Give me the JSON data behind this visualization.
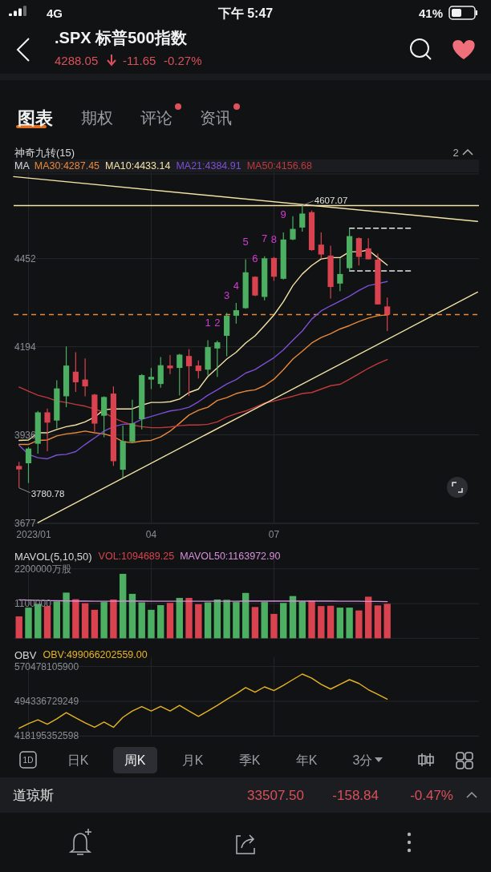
{
  "chart_data": [
    {
      "type": "other",
      "title": ".SPX 标普500指数",
      "subtitle": "4288.05",
      "annotations": [
        "4G",
        "下午 5:47",
        "41%",
        "-11.65",
        "-0.27%",
        "图表",
        "期权",
        "评论",
        "资讯"
      ]
    },
    {
      "type": "candlestick",
      "title": "神奇九转(15)",
      "legend_title": "MA",
      "legend": "top left",
      "grid": true,
      "x": [
        "2022-12-26",
        "2023-01-02",
        "2023-01-09",
        "2023-01-16",
        "2023-01-23",
        "2023-01-30",
        "2023-02-06",
        "2023-02-13",
        "2023-02-20",
        "2023-02-27",
        "2023-03-06",
        "2023-03-13",
        "2023-03-20",
        "2023-03-27",
        "2023-04-03",
        "2023-04-10",
        "2023-04-17",
        "2023-04-24",
        "2023-05-01",
        "2023-05-08",
        "2023-05-15",
        "2023-05-22",
        "2023-05-29",
        "2023-06-05",
        "2023-06-12",
        "2023-06-19",
        "2023-06-26",
        "2023-07-03",
        "2023-07-10",
        "2023-07-17",
        "2023-07-24",
        "2023-07-31",
        "2023-08-07",
        "2023-08-14",
        "2023-08-21",
        "2023-08-28",
        "2023-09-04",
        "2023-09-11",
        "2023-09-18",
        "2023-09-25"
      ],
      "ohlc": [
        [
          3845,
          3857,
          3780.78,
          3835
        ],
        [
          3853,
          3900,
          3795,
          3896
        ],
        [
          3910,
          4006,
          3881,
          4002
        ],
        [
          4002,
          4013,
          3888,
          3972
        ],
        [
          3978,
          4096,
          3955,
          4072
        ],
        [
          4049,
          4195,
          4017,
          4139
        ],
        [
          4121,
          4178,
          4062,
          4090
        ],
        [
          4098,
          4160,
          4049,
          4078
        ],
        [
          4054,
          4056,
          3943,
          3969
        ],
        [
          3992,
          4049,
          3929,
          4047
        ],
        [
          4057,
          4078,
          3845,
          3859
        ],
        [
          3834,
          3963,
          3810,
          3918
        ],
        [
          3916,
          4039,
          3913,
          3970
        ],
        [
          3982,
          4114,
          3952,
          4111
        ],
        [
          4098,
          4132,
          4070,
          4106
        ],
        [
          4085,
          4164,
          4074,
          4140
        ],
        [
          4139,
          4170,
          4114,
          4131
        ],
        [
          4132,
          4173,
          4052,
          4171
        ],
        [
          4167,
          4187,
          4050,
          4137
        ],
        [
          4139,
          4154,
          4101,
          4123
        ],
        [
          4127,
          4213,
          4111,
          4193
        ],
        [
          4189,
          4212,
          4106,
          4207
        ],
        [
          4226,
          4293,
          4166,
          4285
        ],
        [
          4285,
          4322,
          4262,
          4301
        ],
        [
          4307,
          4450,
          4305,
          4412
        ],
        [
          4399,
          4400,
          4342,
          4344
        ],
        [
          4340,
          4459,
          4330,
          4453
        ],
        [
          4454,
          4457,
          4387,
          4399
        ],
        [
          4393,
          4529,
          4391,
          4508
        ],
        [
          4508,
          4576,
          4506,
          4539
        ],
        [
          4543,
          4607.07,
          4531,
          4584
        ],
        [
          4588,
          4593,
          4475,
          4477
        ],
        [
          4493,
          4529,
          4451,
          4464
        ],
        [
          4461,
          4490,
          4335,
          4369
        ],
        [
          4379,
          4453,
          4357,
          4407
        ],
        [
          4424,
          4541,
          4416,
          4518
        ],
        [
          4512,
          4514,
          4432,
          4457
        ],
        [
          4482,
          4512,
          4450,
          4450
        ],
        [
          4449,
          4467,
          4318,
          4318
        ],
        [
          4312,
          4338,
          4240,
          4288.05
        ]
      ],
      "series": [
        {
          "name": "MA30:4287.45",
          "type": "line",
          "color": "#e8883a",
          "values": [
            3908,
            3908,
            3920,
            3921,
            3933,
            3939,
            3942,
            3947,
            3942,
            3939,
            3931,
            3916,
            3913,
            3918,
            3920,
            3930,
            3947,
            3970,
            3994,
            4008,
            4017,
            4037,
            4045,
            4057,
            4064,
            4068,
            4080,
            4099,
            4127,
            4158,
            4181,
            4205,
            4221,
            4232,
            4246,
            4256,
            4268,
            4278,
            4285,
            4287.45
          ]
        },
        {
          "name": "MA10:4433.14",
          "type": "line",
          "color": "#f3e3a6",
          "values": [
            3920,
            3921,
            3942,
            3942,
            3952,
            3960,
            3965,
            3974,
            3988,
            4010,
            4012,
            4012,
            4012,
            4023,
            4031,
            4031,
            4033,
            4041,
            4060,
            4070,
            4107,
            4132,
            4158,
            4178,
            4205,
            4226,
            4256,
            4287,
            4326,
            4373,
            4407,
            4432,
            4451,
            4455,
            4455,
            4472,
            4472,
            4477,
            4455,
            4433.14
          ]
        },
        {
          "name": "MA21:4384.91",
          "type": "line",
          "color": "#7b4fd6",
          "values": [
            3906,
            3879,
            3869,
            3866,
            3877,
            3879,
            3887,
            3908,
            3927,
            3947,
            3960,
            3967,
            3968,
            3982,
            3990,
            3998,
            4006,
            4010,
            4017,
            4033,
            4052,
            4068,
            4085,
            4098,
            4117,
            4127,
            4145,
            4162,
            4185,
            4213,
            4240,
            4275,
            4299,
            4314,
            4328,
            4342,
            4359,
            4373,
            4379,
            4384.91
          ]
        },
        {
          "name": "MA50:4156.68",
          "type": "line",
          "color": "#c0393b",
          "values": [
            4076,
            4064,
            4052,
            4045,
            4035,
            4031,
            4025,
            4020,
            4012,
            4002,
            3986,
            3974,
            3965,
            3960,
            3957,
            3957,
            3959,
            3963,
            3965,
            3965,
            3967,
            3974,
            3988,
            3998,
            4006,
            4017,
            4029,
            4035,
            4042,
            4049,
            4057,
            4060,
            4070,
            4080,
            4084,
            4099,
            4115,
            4131,
            4145,
            4156.68
          ]
        },
        {
          "type": "line",
          "color": "#f3e3a6",
          "x": [
            "2022-12-22",
            "2023-12-01"
          ],
          "values": [
            4692,
            4561
          ]
        },
        {
          "type": "line",
          "color": "#f3e3a6",
          "x": [
            "2023-01-09",
            "2023-12-01"
          ],
          "values": [
            3679,
            4354
          ]
        },
        {
          "type": "line",
          "color": "#e8e8e8",
          "line_style": "dashed",
          "x": [
            "2023-08-28",
            "2023-10-14"
          ],
          "values": [
            4541,
            4541
          ]
        },
        {
          "type": "line",
          "color": "#e8e8e8",
          "line_style": "dashed",
          "x": [
            "2023-08-28",
            "2023-10-14"
          ],
          "values": [
            4416,
            4416
          ]
        }
      ],
      "ref_lines": [
        {
          "axis": "y",
          "value": 4607.07,
          "color": "#f3e3a6"
        },
        {
          "axis": "y",
          "value": 4288.05,
          "color": "#e8883a",
          "line_style": "dashed"
        }
      ],
      "annotations": [
        "2",
        {
          "text": "4607.07",
          "x": "2023-07-24",
          "y": 4607.07
        },
        {
          "text": "3780.78",
          "x": "2022-12-26",
          "y": 3780.78
        },
        {
          "text": "1",
          "x": "2023-05-15",
          "y": 4213
        },
        {
          "text": "2",
          "x": "2023-05-22",
          "y": 4212
        },
        {
          "text": "3",
          "x": "2023-05-29",
          "y": 4293
        },
        {
          "text": "4",
          "x": "2023-06-05",
          "y": 4322
        },
        {
          "text": "5",
          "x": "2023-06-12",
          "y": 4450
        },
        {
          "text": "6",
          "x": "2023-06-19",
          "y": 4400
        },
        {
          "text": "7",
          "x": "2023-06-26",
          "y": 4459
        },
        {
          "text": "8",
          "x": "2023-07-03",
          "y": 4457
        },
        {
          "text": "9",
          "x": "2023-07-10",
          "y": 4529
        }
      ],
      "xlim": [
        "2022-12-22",
        "2023-12-02"
      ],
      "xticks": [
        {
          "value": "2023-01-02",
          "label": "2023/01"
        },
        {
          "value": "2023-04-03",
          "label": "04"
        },
        {
          "value": "2023-07-03",
          "label": "07"
        }
      ],
      "ylim": [
        3677,
        4700
      ],
      "yticks": [
        3677,
        3936,
        4194,
        4452
      ]
    },
    {
      "type": "bar",
      "title": "MAVOL(5,10,50)",
      "legend": "top left",
      "grid": true,
      "tick_labels": "y",
      "x": [
        "2022-12-26",
        "2023-01-02",
        "2023-01-09",
        "2023-01-16",
        "2023-01-23",
        "2023-01-30",
        "2023-02-06",
        "2023-02-13",
        "2023-02-20",
        "2023-02-27",
        "2023-03-06",
        "2023-03-13",
        "2023-03-20",
        "2023-03-27",
        "2023-04-03",
        "2023-04-10",
        "2023-04-17",
        "2023-04-24",
        "2023-05-01",
        "2023-05-08",
        "2023-05-15",
        "2023-05-22",
        "2023-05-29",
        "2023-06-05",
        "2023-06-12",
        "2023-06-19",
        "2023-06-26",
        "2023-07-03",
        "2023-07-10",
        "2023-07-17",
        "2023-07-24",
        "2023-07-31",
        "2023-08-07",
        "2023-08-14",
        "2023-08-21",
        "2023-08-28",
        "2023-09-04",
        "2023-09-11",
        "2023-09-18",
        "2023-09-25"
      ],
      "series": [
        {
          "name": "VOL:1094689.25",
          "type": "bar",
          "colors": [
            "#d9434f",
            "#4caf62",
            "#4caf62",
            "#d9434f",
            "#4caf62",
            "#4caf62",
            "#d9434f",
            "#d9434f",
            "#d9434f",
            "#4caf62",
            "#d9434f",
            "#4caf62",
            "#4caf62",
            "#4caf62",
            "#4caf62",
            "#4caf62",
            "#d9434f",
            "#4caf62",
            "#d9434f",
            "#d9434f",
            "#4caf62",
            "#4caf62",
            "#4caf62",
            "#4caf62",
            "#4caf62",
            "#d9434f",
            "#4caf62",
            "#d9434f",
            "#4caf62",
            "#4caf62",
            "#4caf62",
            "#d9434f",
            "#d9434f",
            "#d9434f",
            "#4caf62",
            "#4caf62",
            "#d9434f",
            "#d9434f",
            "#d9434f",
            "#d9434f"
          ],
          "values": [
            694000,
            972000,
            1091000,
            1022000,
            1170000,
            1448000,
            1240000,
            1111000,
            903000,
            1151000,
            1230000,
            2043000,
            1409000,
            1141000,
            903000,
            1051000,
            1121000,
            1280000,
            1280000,
            1081000,
            1141000,
            1230000,
            1220000,
            1151000,
            1438000,
            992000,
            1151000,
            774000,
            1121000,
            1339000,
            1170000,
            1190000,
            1022000,
            1032000,
            972000,
            972000,
            883000,
            1319000,
            1042000,
            1094689.25
          ]
        },
        {
          "name": "MAVOL50:1163972.90",
          "type": "line",
          "color": "#d58fd9",
          "values": [
            1220000,
            1210000,
            1200000,
            1195000,
            1190000,
            1185000,
            1180000,
            1180000,
            1175000,
            1175000,
            1175000,
            1180000,
            1180000,
            1180000,
            1175000,
            1175000,
            1175000,
            1175000,
            1175000,
            1175000,
            1175000,
            1175000,
            1175000,
            1175000,
            1180000,
            1180000,
            1180000,
            1180000,
            1180000,
            1180000,
            1180000,
            1180000,
            1180000,
            1180000,
            1175000,
            1175000,
            1175000,
            1170000,
            1168000,
            1163972.9
          ]
        }
      ],
      "xlim": [
        "2022-12-22",
        "2023-12-02"
      ],
      "xticks": [
        "2023-01-02",
        "2023-04-03",
        "2023-07-03"
      ],
      "ylim": [
        0,
        2200000
      ],
      "yticks": [
        1100000,
        {
          "value": 2200000,
          "label": "2200000万股"
        }
      ]
    },
    {
      "type": "line",
      "title": "OBV",
      "legend": "top left",
      "grid": true,
      "tick_labels": "y",
      "x": [
        "2022-12-26",
        "2023-01-02",
        "2023-01-09",
        "2023-01-16",
        "2023-01-23",
        "2023-01-30",
        "2023-02-06",
        "2023-02-13",
        "2023-02-20",
        "2023-02-27",
        "2023-03-06",
        "2023-03-13",
        "2023-03-20",
        "2023-03-27",
        "2023-04-03",
        "2023-04-10",
        "2023-04-17",
        "2023-04-24",
        "2023-05-01",
        "2023-05-08",
        "2023-05-15",
        "2023-05-22",
        "2023-05-29",
        "2023-06-05",
        "2023-06-12",
        "2023-06-19",
        "2023-06-26",
        "2023-07-03",
        "2023-07-10",
        "2023-07-17",
        "2023-07-24",
        "2023-07-31",
        "2023-08-07",
        "2023-08-14",
        "2023-08-21",
        "2023-08-28",
        "2023-09-04",
        "2023-09-11",
        "2023-09-18",
        "2023-09-25"
      ],
      "series": [
        {
          "name": "OBV:499066202559.00",
          "color": "#e6b422",
          "values": [
            435300000000,
            445600000000,
            453800000000,
            444200000000,
            455900000000,
            469600000000,
            458000000000,
            447000000000,
            437400000000,
            449000000000,
            437400000000,
            459300000000,
            473000000000,
            482700000000,
            473000000000,
            483300000000,
            473000000000,
            485400000000,
            473000000000,
            461400000000,
            473000000000,
            485400000000,
            498500000000,
            510800000000,
            524500000000,
            514200000000,
            525900000000,
            517700000000,
            529300000000,
            541700000000,
            554000000000,
            545100000000,
            531400000000,
            521100000000,
            531400000000,
            541700000000,
            533400000000,
            519700000000,
            509400000000,
            499066202559
          ]
        }
      ],
      "xlim": [
        "2022-12-22",
        "2023-12-02"
      ],
      "xticks": [
        "2023-01-02",
        "2023-04-03",
        "2023-07-03"
      ],
      "ylim": [
        418195352598,
        570478105900
      ],
      "yticks": [
        418195352598,
        494336729249,
        570478105900
      ]
    },
    {
      "type": "other",
      "annotations": [
        "1D",
        "日K",
        "周K",
        "月K",
        "季K",
        "年K",
        "3分",
        "道琼斯",
        "33507.50",
        "-158.84",
        "-0.47%"
      ]
    }
  ]
}
